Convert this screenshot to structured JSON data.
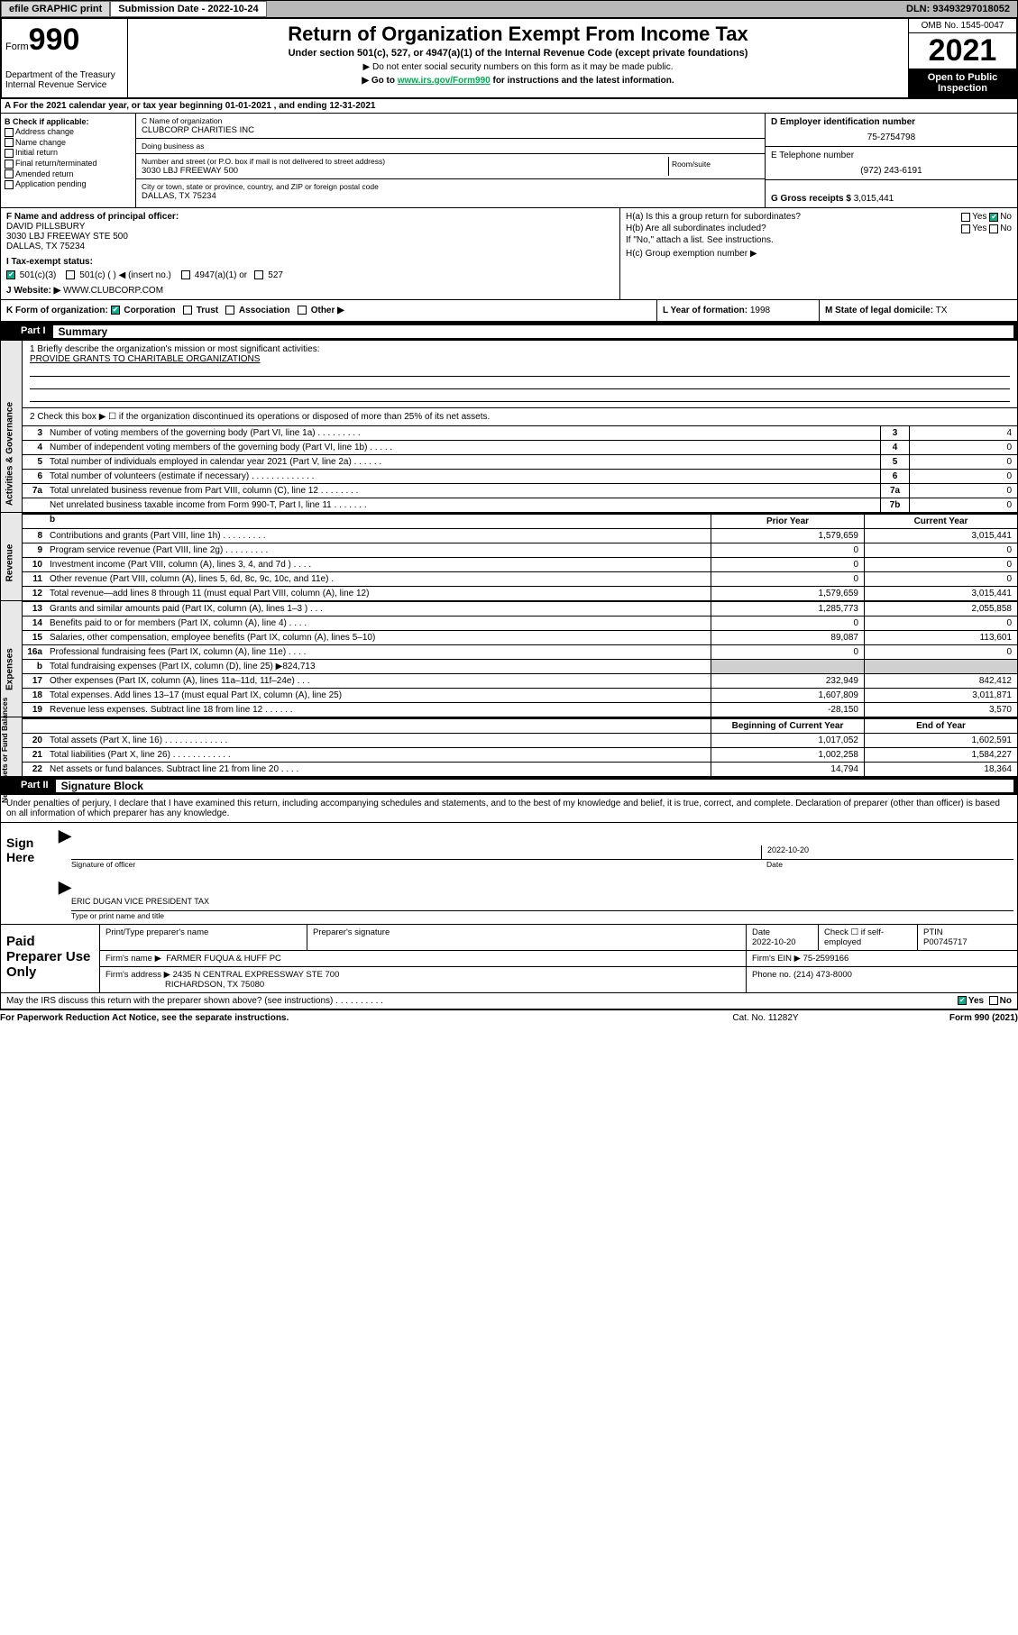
{
  "topbar": {
    "efile": "efile GRAPHIC print",
    "subdate_lbl": "Submission Date - 2022-10-24",
    "dln": "DLN: 93493297018052"
  },
  "header": {
    "form_word": "Form",
    "form_no": "990",
    "dept": "Department of the Treasury\nInternal Revenue Service",
    "title": "Return of Organization Exempt From Income Tax",
    "sub1": "Under section 501(c), 527, or 4947(a)(1) of the Internal Revenue Code (except private foundations)",
    "sub2": "▶ Do not enter social security numbers on this form as it may be made public.",
    "sub3_pre": "▶ Go to ",
    "sub3_link": "www.irs.gov/Form990",
    "sub3_post": " for instructions and the latest information.",
    "omb": "OMB No. 1545-0047",
    "year": "2021",
    "open": "Open to Public Inspection"
  },
  "row_a": "A For the 2021 calendar year, or tax year beginning 01-01-2021   , and ending 12-31-2021",
  "col_b": {
    "hdr": "B Check if applicable:",
    "opts": [
      "Address change",
      "Name change",
      "Initial return",
      "Final return/terminated",
      "Amended return",
      "Application pending"
    ]
  },
  "col_c": {
    "name_lbl": "C Name of organization",
    "name": "CLUBCORP CHARITIES INC",
    "dba_lbl": "Doing business as",
    "dba": "",
    "addr_lbl": "Number and street (or P.O. box if mail is not delivered to street address)",
    "addr": "3030 LBJ FREEWAY 500",
    "room_lbl": "Room/suite",
    "city_lbl": "City or town, state or province, country, and ZIP or foreign postal code",
    "city": "DALLAS, TX  75234"
  },
  "col_d": {
    "ein_lbl": "D Employer identification number",
    "ein": "75-2754798",
    "tel_lbl": "E Telephone number",
    "tel": "(972) 243-6191",
    "gross_lbl": "G Gross receipts $",
    "gross": "3,015,441"
  },
  "block_f": {
    "f_lbl": "F Name and address of principal officer:",
    "f_name": "DAVID PILLSBURY",
    "f_addr1": "3030 LBJ FREEWAY STE 500",
    "f_addr2": "DALLAS, TX  75234",
    "ha": "H(a)  Is this a group return for subordinates?",
    "ha_ans_no": "No",
    "ha_ans_yes": "Yes",
    "hb": "H(b)  Are all subordinates included?",
    "hb_yes": "Yes",
    "hb_no": "No",
    "hb_note": "If \"No,\" attach a list. See instructions.",
    "hc": "H(c)  Group exemption number ▶"
  },
  "row_i": {
    "lbl": "I   Tax-exempt status:",
    "o1": "501(c)(3)",
    "o2": "501(c) (  ) ◀ (insert no.)",
    "o3": "4947(a)(1) or",
    "o4": "527"
  },
  "row_j": {
    "lbl": "J   Website: ▶",
    "val": "WWW.CLUBCORP.COM"
  },
  "row_k": {
    "k": "K Form of organization:",
    "opts": [
      "Corporation",
      "Trust",
      "Association",
      "Other ▶"
    ],
    "l_lbl": "L Year of formation:",
    "l_val": "1998",
    "m_lbl": "M State of legal domicile:",
    "m_val": "TX"
  },
  "part1": {
    "tab": "Part I",
    "title": "Summary",
    "q1_lbl": "1  Briefly describe the organization's mission or most significant activities:",
    "q1_val": "PROVIDE GRANTS TO CHARITABLE ORGANIZATIONS",
    "q2_lbl": "2  Check this box ▶ ☐  if the organization discontinued its operations or disposed of more than 25% of its net assets.",
    "side1": "Activities & Governance",
    "rows_num": [
      {
        "n": "3",
        "t": "Number of voting members of the governing body (Part VI, line 1a)  .   .   .   .   .   .   .   .   .",
        "b": "3",
        "v": "4"
      },
      {
        "n": "4",
        "t": "Number of independent voting members of the governing body (Part VI, line 1b)  .   .   .   .   .",
        "b": "4",
        "v": "0"
      },
      {
        "n": "5",
        "t": "Total number of individuals employed in calendar year 2021 (Part V, line 2a)  .   .   .   .   .   .",
        "b": "5",
        "v": "0"
      },
      {
        "n": "6",
        "t": "Total number of volunteers (estimate if necessary)  .   .   .   .   .   .   .   .   .   .   .   .   .",
        "b": "6",
        "v": "0"
      },
      {
        "n": "7a",
        "t": "Total unrelated business revenue from Part VIII, column (C), line 12  .   .   .   .   .   .   .   .",
        "b": "7a",
        "v": "0"
      },
      {
        "n": "",
        "t": "Net unrelated business taxable income from Form 990-T, Part I, line 11  .   .   .   .   .   .   .",
        "b": "7b",
        "v": "0"
      }
    ],
    "hdr_b": "b",
    "prior": "Prior Year",
    "current": "Current Year",
    "side2": "Revenue",
    "rev": [
      {
        "n": "8",
        "t": "Contributions and grants (Part VIII, line 1h)  .   .   .   .   .   .   .   .   .",
        "p": "1,579,659",
        "c": "3,015,441"
      },
      {
        "n": "9",
        "t": "Program service revenue (Part VIII, line 2g)  .   .   .   .   .   .   .   .   .",
        "p": "0",
        "c": "0"
      },
      {
        "n": "10",
        "t": "Investment income (Part VIII, column (A), lines 3, 4, and 7d )  .   .   .   .",
        "p": "0",
        "c": "0"
      },
      {
        "n": "11",
        "t": "Other revenue (Part VIII, column (A), lines 5, 6d, 8c, 9c, 10c, and 11e)  .",
        "p": "0",
        "c": "0"
      },
      {
        "n": "12",
        "t": "Total revenue—add lines 8 through 11 (must equal Part VIII, column (A), line 12)",
        "p": "1,579,659",
        "c": "3,015,441"
      }
    ],
    "side3": "Expenses",
    "exp": [
      {
        "n": "13",
        "t": "Grants and similar amounts paid (Part IX, column (A), lines 1–3 )  .   .   .",
        "p": "1,285,773",
        "c": "2,055,858"
      },
      {
        "n": "14",
        "t": "Benefits paid to or for members (Part IX, column (A), line 4)  .   .   .   .",
        "p": "0",
        "c": "0"
      },
      {
        "n": "15",
        "t": "Salaries, other compensation, employee benefits (Part IX, column (A), lines 5–10)",
        "p": "89,087",
        "c": "113,601"
      },
      {
        "n": "16a",
        "t": "Professional fundraising fees (Part IX, column (A), line 11e)  .   .   .   .",
        "p": "0",
        "c": "0"
      },
      {
        "n": "b",
        "t": "Total fundraising expenses (Part IX, column (D), line 25) ▶824,713",
        "p": "",
        "c": "",
        "shade": true
      },
      {
        "n": "17",
        "t": "Other expenses (Part IX, column (A), lines 11a–11d, 11f–24e)  .   .   .",
        "p": "232,949",
        "c": "842,412"
      },
      {
        "n": "18",
        "t": "Total expenses. Add lines 13–17 (must equal Part IX, column (A), line 25)",
        "p": "1,607,809",
        "c": "3,011,871"
      },
      {
        "n": "19",
        "t": "Revenue less expenses. Subtract line 18 from line 12  .   .   .   .   .   .",
        "p": "-28,150",
        "c": "3,570"
      }
    ],
    "side4": "Net Assets or Fund Balances",
    "beg": "Beginning of Current Year",
    "end": "End of Year",
    "net": [
      {
        "n": "20",
        "t": "Total assets (Part X, line 16)  .   .   .   .   .   .   .   .   .   .   .   .   .",
        "p": "1,017,052",
        "c": "1,602,591"
      },
      {
        "n": "21",
        "t": "Total liabilities (Part X, line 26)  .   .   .   .   .   .   .   .   .   .   .   .",
        "p": "1,002,258",
        "c": "1,584,227"
      },
      {
        "n": "22",
        "t": "Net assets or fund balances. Subtract line 21 from line 20  .   .   .   .",
        "p": "14,794",
        "c": "18,364"
      }
    ]
  },
  "part2": {
    "tab": "Part II",
    "title": "Signature Block",
    "perjury": "Under penalties of perjury, I declare that I have examined this return, including accompanying schedules and statements, and to the best of my knowledge and belief, it is true, correct, and complete. Declaration of preparer (other than officer) is based on all information of which preparer has any knowledge.",
    "sign_here": "Sign Here",
    "sig_officer_date": "2022-10-20",
    "sig_officer_lbl": "Signature of officer",
    "date_lbl": "Date",
    "officer_name": "ERIC DUGAN  VICE PRESIDENT TAX",
    "officer_name_lbl": "Type or print name and title"
  },
  "paid": {
    "lbl": "Paid Preparer Use Only",
    "h1": "Print/Type preparer's name",
    "h2": "Preparer's signature",
    "h3": "Date",
    "h3v": "2022-10-20",
    "h4": "Check ☐ if self-employed",
    "h5": "PTIN",
    "h5v": "P00745717",
    "firm_lbl": "Firm's name    ▶",
    "firm": "FARMER FUQUA & HUFF PC",
    "firm_ein_lbl": "Firm's EIN ▶",
    "firm_ein": "75-2599166",
    "firm_addr_lbl": "Firm's address ▶",
    "firm_addr1": "2435 N CENTRAL EXPRESSWAY STE 700",
    "firm_addr2": "RICHARDSON, TX  75080",
    "phone_lbl": "Phone no.",
    "phone": "(214) 473-8000"
  },
  "foot": {
    "q": "May the IRS discuss this return with the preparer shown above? (see instructions)  .   .   .   .   .   .   .   .   .   .",
    "yes": "Yes",
    "no": "No"
  },
  "foot2": {
    "l": "For Paperwork Reduction Act Notice, see the separate instructions.",
    "m": "Cat. No. 11282Y",
    "r": "Form 990 (2021)"
  }
}
